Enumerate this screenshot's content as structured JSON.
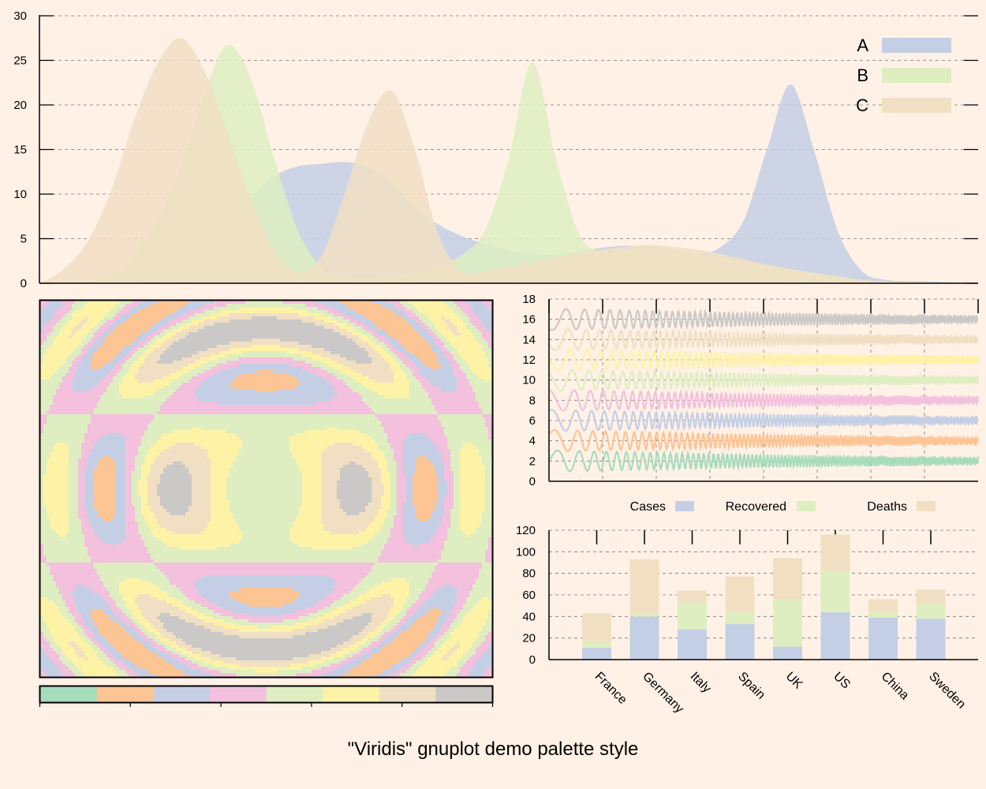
{
  "page": {
    "title": "\"Viridis\" gnuplot demo palette style",
    "background": "#fff1e6"
  },
  "palette": [
    "#a6dcbc",
    "#fdc494",
    "#c4cfe5",
    "#f3c0dd",
    "#deeec1",
    "#fdf2a6",
    "#f1dfc3",
    "#cbc9c7"
  ],
  "chart_data": [
    {
      "type": "area",
      "name": "peaks",
      "ylim": [
        0,
        30
      ],
      "yticks": [
        "0",
        "5",
        "10",
        "15",
        "20",
        "25",
        "30"
      ],
      "grid": true,
      "legend_position": "top-right",
      "series": [
        {
          "name": "A",
          "color": "#c4cfe5",
          "points": [
            [
              0,
              0
            ],
            [
              3,
              0.1
            ],
            [
              5,
              0.4
            ],
            [
              6,
              1.2
            ],
            [
              7,
              3
            ],
            [
              8,
              6.2
            ],
            [
              9,
              9.5
            ],
            [
              10,
              12
            ],
            [
              11,
              13.1
            ],
            [
              12,
              13.4
            ],
            [
              13,
              13.6
            ],
            [
              14,
              13.1
            ],
            [
              15,
              11.2
            ],
            [
              16,
              8.6
            ],
            [
              17,
              6.6
            ],
            [
              18,
              5.3
            ],
            [
              19,
              4.4
            ],
            [
              20,
              3.7
            ],
            [
              21,
              3.3
            ],
            [
              22,
              3.2
            ],
            [
              23,
              3.6
            ],
            [
              24,
              4
            ],
            [
              25,
              4.2
            ],
            [
              26,
              4.1
            ],
            [
              27,
              3.6
            ],
            [
              28,
              3.3
            ],
            [
              29,
              4
            ],
            [
              30,
              7
            ],
            [
              31,
              15
            ],
            [
              32,
              22.3
            ],
            [
              33,
              15
            ],
            [
              34,
              6
            ],
            [
              35,
              1.5
            ],
            [
              36,
              0.4
            ],
            [
              38,
              0.2
            ],
            [
              40,
              0
            ]
          ]
        },
        {
          "name": "B",
          "color": "#deeec1",
          "points": [
            [
              0,
              0
            ],
            [
              2,
              0.2
            ],
            [
              3,
              1
            ],
            [
              4,
              3
            ],
            [
              5,
              7
            ],
            [
              6,
              13
            ],
            [
              7,
              21
            ],
            [
              8,
              26.7
            ],
            [
              9,
              23
            ],
            [
              10,
              14
            ],
            [
              11,
              6
            ],
            [
              12,
              1.8
            ],
            [
              13,
              0.8
            ],
            [
              14,
              0.6
            ],
            [
              15,
              0.9
            ],
            [
              16,
              1.2
            ],
            [
              17,
              2
            ],
            [
              18,
              3.2
            ],
            [
              19,
              6
            ],
            [
              20,
              14
            ],
            [
              21,
              24.8
            ],
            [
              22,
              14
            ],
            [
              23,
              5.5
            ],
            [
              24,
              3.5
            ],
            [
              25,
              3.7
            ],
            [
              26,
              4.1
            ],
            [
              27,
              3.8
            ],
            [
              28,
              3.3
            ],
            [
              29,
              2.9
            ],
            [
              30,
              2.5
            ],
            [
              31,
              2
            ],
            [
              32,
              1.6
            ],
            [
              33,
              1.2
            ],
            [
              34,
              0.8
            ],
            [
              35,
              0.4
            ],
            [
              36,
              0.2
            ],
            [
              38,
              0.1
            ],
            [
              40,
              0
            ]
          ]
        },
        {
          "name": "C",
          "color": "#f1dfc3",
          "points": [
            [
              0,
              0
            ],
            [
              1,
              1.5
            ],
            [
              2,
              4.5
            ],
            [
              3,
              10
            ],
            [
              4,
              18
            ],
            [
              5,
              24.5
            ],
            [
              6,
              27.5
            ],
            [
              7,
              24
            ],
            [
              8,
              17
            ],
            [
              9,
              9.5
            ],
            [
              10,
              3.8
            ],
            [
              11,
              1.2
            ],
            [
              12,
              3
            ],
            [
              13,
              10
            ],
            [
              14,
              18
            ],
            [
              15,
              21.6
            ],
            [
              16,
              15
            ],
            [
              17,
              5.5
            ],
            [
              18,
              1.3
            ],
            [
              19,
              1.4
            ],
            [
              20,
              1.8
            ],
            [
              21,
              2.3
            ],
            [
              22,
              2.9
            ],
            [
              23,
              3.4
            ],
            [
              24,
              3.8
            ],
            [
              25,
              4.1
            ],
            [
              26,
              4.3
            ],
            [
              27,
              4.1
            ],
            [
              28,
              3.8
            ],
            [
              29,
              3.3
            ],
            [
              30,
              2.7
            ],
            [
              31,
              2.1
            ],
            [
              32,
              1.6
            ],
            [
              33,
              1.1
            ],
            [
              34,
              0.7
            ],
            [
              35,
              0.4
            ],
            [
              36,
              0.2
            ],
            [
              38,
              0.1
            ],
            [
              40,
              0
            ]
          ]
        }
      ]
    },
    {
      "type": "heatmap",
      "name": "pattern",
      "palette_bands": 8
    },
    {
      "type": "line",
      "name": "waves",
      "ylim": [
        0,
        18
      ],
      "yticks": [
        "0",
        "2",
        "4",
        "6",
        "8",
        "10",
        "12",
        "14",
        "16",
        "18"
      ],
      "series": [
        {
          "offset": 2,
          "color": "#a6dcbc"
        },
        {
          "offset": 4,
          "color": "#fdc494"
        },
        {
          "offset": 6,
          "color": "#c4cfe5"
        },
        {
          "offset": 8,
          "color": "#f3c0dd"
        },
        {
          "offset": 10,
          "color": "#deeec1"
        },
        {
          "offset": 12,
          "color": "#fdf2a6"
        },
        {
          "offset": 14,
          "color": "#f1dfc3"
        },
        {
          "offset": 16,
          "color": "#cbc9c7"
        }
      ]
    },
    {
      "type": "bar",
      "name": "countries",
      "stacked": true,
      "ylim": [
        0,
        120
      ],
      "yticks": [
        "0",
        "20",
        "40",
        "60",
        "80",
        "100",
        "120"
      ],
      "categories": [
        "France",
        "Germany",
        "Italy",
        "Spain",
        "UK",
        "US",
        "China",
        "Sweden"
      ],
      "legend_position": "top",
      "series": [
        {
          "name": "Cases",
          "color": "#c4cfe5",
          "values": [
            11,
            40,
            28,
            33,
            12,
            44,
            39,
            38
          ]
        },
        {
          "name": "Recovered",
          "color": "#deeec1",
          "values": [
            6,
            3,
            25,
            11,
            44,
            38,
            5,
            14
          ]
        },
        {
          "name": "Deaths",
          "color": "#f1dfc3",
          "values": [
            26,
            50,
            11,
            33,
            38,
            34,
            12,
            13
          ]
        }
      ]
    }
  ]
}
